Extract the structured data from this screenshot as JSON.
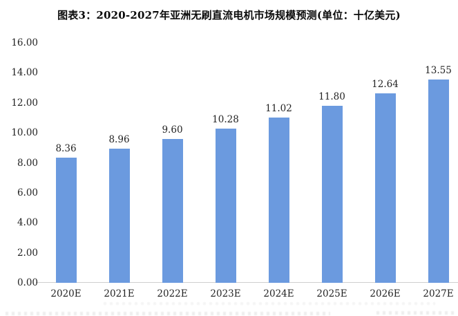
{
  "chart_data": {
    "type": "bar",
    "title": "图表3：2020-2027年亚洲无刷直流电机市场规模预测(单位：十亿美元)",
    "unit": "十亿美元",
    "categories": [
      "2020E",
      "2021E",
      "2022E",
      "2023E",
      "2024E",
      "2025E",
      "2026E",
      "2027E"
    ],
    "values": [
      8.36,
      8.96,
      9.6,
      10.28,
      11.02,
      11.8,
      12.64,
      13.55
    ],
    "data_labels": [
      "8.36",
      "8.96",
      "9.60",
      "10.28",
      "11.02",
      "11.80",
      "12.64",
      "13.55"
    ],
    "xlabel": "",
    "ylabel": "",
    "ylim": [
      0,
      16
    ],
    "ytick_step": 2,
    "ytick_labels_top_to_bottom": [
      "16.00",
      "14.00",
      "12.00",
      "10.00",
      "8.00",
      "6.00",
      "4.00",
      "2.00",
      "0.00"
    ],
    "grid": false,
    "legend": false,
    "colors": {
      "bar": "#6B9ADF",
      "axis_line": "#cfcfcf",
      "label_text": "#222222",
      "title_text": "#0a0a0a"
    }
  }
}
